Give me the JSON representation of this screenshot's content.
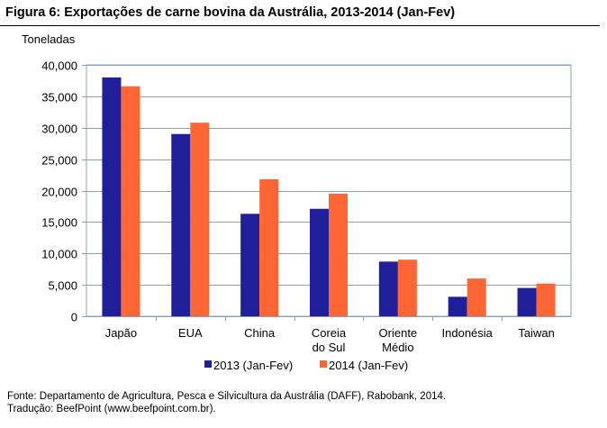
{
  "figure": {
    "title": "Figura 6: Exportações de carne bovina da Austrália, 2013-2014 (Jan-Fev)",
    "unit_label": "Toneladas"
  },
  "footer": {
    "source": "Fonte: Departamento de Agricultura, Pesca e Silvicultura da Austrália (DAFF), Rabobank, 2014.",
    "translation": "Tradução: BeefPoint (www.beefpoint.com.br)."
  },
  "chart_data": {
    "type": "bar",
    "categories": [
      [
        "Japão"
      ],
      [
        "EUA"
      ],
      [
        "China"
      ],
      [
        "Coreia",
        "do Sul"
      ],
      [
        "Oriente",
        "Médio"
      ],
      [
        "Indonésia"
      ],
      [
        "Taiwan"
      ]
    ],
    "series": [
      {
        "name": "2013 (Jan-Fev)",
        "color": "#1F1F99",
        "values": [
          38000,
          29000,
          16300,
          17100,
          8700,
          3100,
          4500
        ]
      },
      {
        "name": "2014 (Jan-Fev)",
        "color": "#FF6633",
        "values": [
          36600,
          30800,
          21800,
          19500,
          9000,
          6000,
          5200
        ]
      }
    ],
    "ylabel": "Toneladas",
    "ylim": [
      0,
      40000
    ],
    "yticks": [
      "0",
      "5,000",
      "10,000",
      "15,000",
      "20,000",
      "25,000",
      "30,000",
      "35,000",
      "40,000"
    ],
    "ytick_values": [
      0,
      5000,
      10000,
      15000,
      20000,
      25000,
      30000,
      35000,
      40000
    ],
    "grid": true,
    "legend": "bottom"
  }
}
